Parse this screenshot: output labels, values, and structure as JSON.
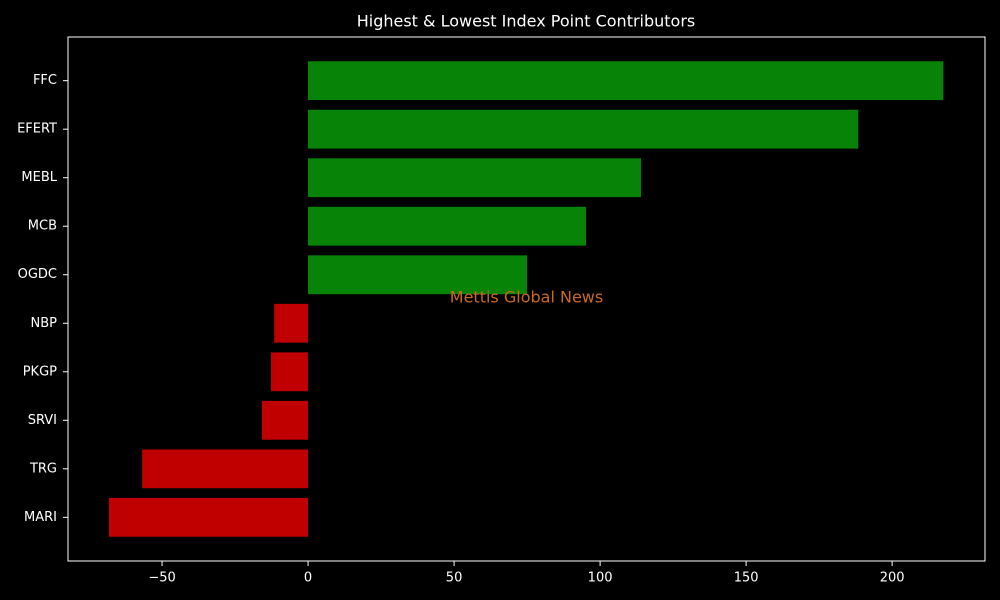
{
  "chart_data": {
    "type": "barh",
    "title": "Highest & Lowest Index Point Contributors",
    "annotation": "Mettis Global News",
    "categories": [
      "FFC",
      "EFERT",
      "MEBL",
      "MCB",
      "OGDC",
      "NBP",
      "PKGP",
      "SRVI",
      "TRG",
      "MARI"
    ],
    "values": [
      217.5,
      188.4,
      114,
      95.2,
      75,
      -11.6,
      -12.7,
      -15.8,
      -56.8,
      -68.2
    ],
    "positive_color": "#078407",
    "negative_color": "#c00000",
    "xlim": [
      -82.2,
      231.8
    ],
    "xticks": [
      {
        "value": -50,
        "label": "−50"
      },
      0,
      50,
      100,
      150,
      200
    ],
    "grid": false
  }
}
